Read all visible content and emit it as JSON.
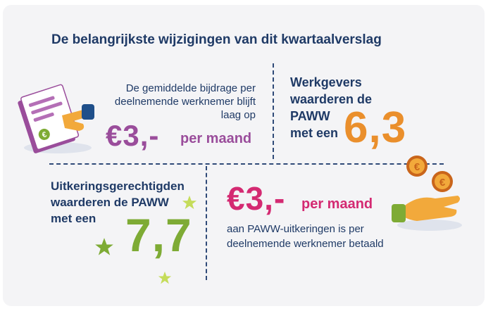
{
  "title": "De belangrijkste wijzigingen van dit kwartaalverslag",
  "block1": {
    "line1": "De gemiddelde bijdrage per",
    "line2": "deelnemende werknemer blijft",
    "line3": "laag op",
    "amount": "€3,-",
    "unit": "per maand",
    "icon_symbol": "€"
  },
  "block2": {
    "line1": "Werkgevers",
    "line2": "waarderen de",
    "line3": "PAWW",
    "line4": "met een",
    "score": "6,3"
  },
  "block3": {
    "line1": "Uitkeringsgerechtigden",
    "line2": "waarderen de PAWW",
    "line3": "met een",
    "score": "7,7"
  },
  "block4": {
    "amount": "€3,-",
    "unit": "per maand",
    "line1": "aan PAWW-uitkeringen is per",
    "line2": "deelnemende werknemer betaald"
  },
  "colors": {
    "navy": "#1f3a66",
    "purple": "#9a4d9b",
    "orange": "#ea8f2c",
    "green": "#7eab35",
    "pink": "#d42a72"
  }
}
